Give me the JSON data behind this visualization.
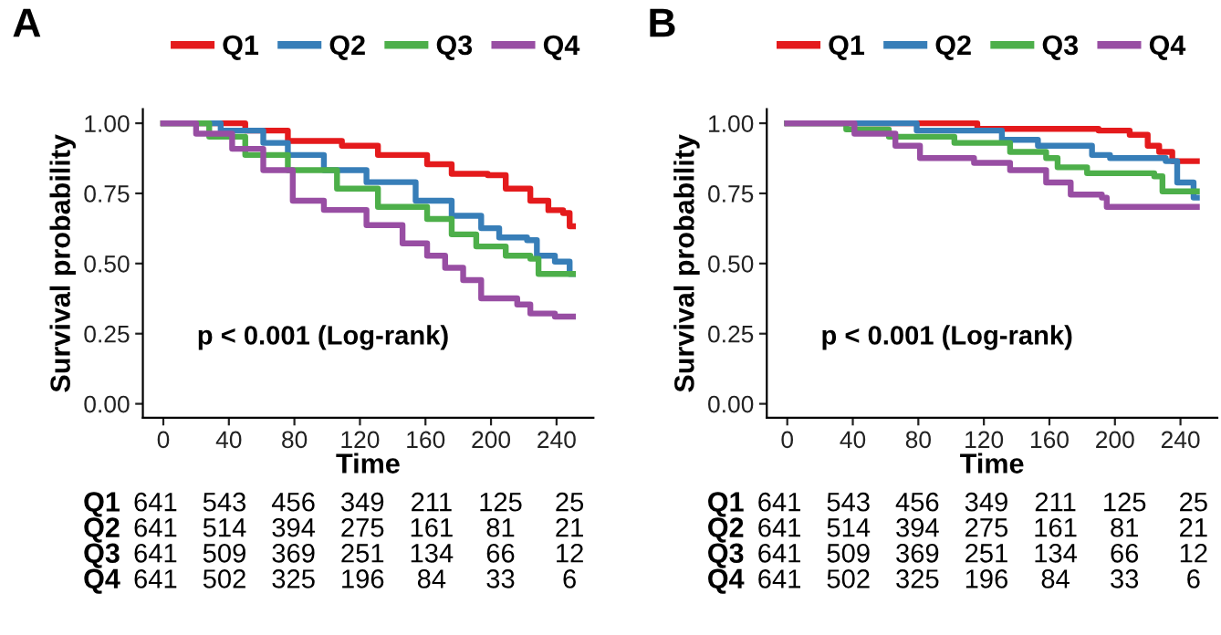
{
  "chart_data": [
    {
      "type": "step",
      "title": "A",
      "xlabel": "Time",
      "ylabel": "Survival probability",
      "legend": "top",
      "grid": false,
      "xlim": [
        -12.5,
        262.5
      ],
      "xticks": [
        0,
        40,
        80,
        120,
        160,
        200,
        240
      ],
      "ylim": [
        -0.05,
        1.05
      ],
      "yticks": [
        {
          "value": 0,
          "label": "0.00"
        },
        {
          "value": 0.25,
          "label": "0.25"
        },
        {
          "value": 0.5,
          "label": "0.50"
        },
        {
          "value": 0.75,
          "label": "0.75"
        },
        {
          "value": 1,
          "label": "1.00"
        }
      ],
      "series": [
        {
          "name": "Q1",
          "color": "#e41a1c",
          "x": [
            0,
            50,
            76,
            109,
            131,
            161,
            176,
            198,
            209,
            224,
            235,
            244,
            248,
            250
          ],
          "values": [
            1.0,
            0.974,
            0.937,
            0.92,
            0.887,
            0.854,
            0.82,
            0.815,
            0.767,
            0.724,
            0.69,
            0.68,
            0.633,
            0.633
          ]
        },
        {
          "name": "Q2",
          "color": "#377eb8",
          "x": [
            0,
            35,
            61,
            76,
            98,
            124,
            154,
            176,
            194,
            205,
            222,
            228,
            239,
            248,
            250
          ],
          "values": [
            1.0,
            0.974,
            0.93,
            0.887,
            0.833,
            0.79,
            0.724,
            0.67,
            0.626,
            0.593,
            0.583,
            0.528,
            0.507,
            0.463,
            0.463
          ]
        },
        {
          "name": "Q3",
          "color": "#4daf4a",
          "x": [
            0,
            28,
            50,
            76,
            106,
            131,
            161,
            176,
            191,
            209,
            224,
            229,
            250
          ],
          "values": [
            1.0,
            0.952,
            0.887,
            0.833,
            0.767,
            0.702,
            0.659,
            0.604,
            0.561,
            0.528,
            0.517,
            0.463,
            0.463
          ]
        },
        {
          "name": "Q4",
          "color": "#984ea3",
          "x": [
            0,
            20,
            42,
            61,
            79,
            98,
            124,
            146,
            161,
            172,
            183,
            194,
            216,
            224,
            239,
            250
          ],
          "values": [
            1.0,
            0.963,
            0.909,
            0.833,
            0.724,
            0.691,
            0.637,
            0.572,
            0.528,
            0.485,
            0.441,
            0.376,
            0.354,
            0.322,
            0.311,
            0.311
          ]
        }
      ],
      "annotations": [
        "p < 0.001 (Log-rank)",
        "Q1 641 543 456 349 211 125 25",
        "Q2 641 514 394 275 161 81 21",
        "Q3 641 509 369 251 134 66 12",
        "Q4 641 502 325 196 84 33 6"
      ]
    },
    {
      "type": "step",
      "title": "B",
      "xlabel": "Time",
      "ylabel": "Survival probability",
      "legend": "top",
      "grid": false,
      "xlim": [
        -12.5,
        262.5
      ],
      "xticks": [
        0,
        40,
        80,
        120,
        160,
        200,
        240
      ],
      "ylim": [
        -0.05,
        1.05
      ],
      "yticks": [
        {
          "value": 0,
          "label": "0.00"
        },
        {
          "value": 0.25,
          "label": "0.25"
        },
        {
          "value": 0.5,
          "label": "0.50"
        },
        {
          "value": 0.75,
          "label": "0.75"
        },
        {
          "value": 1,
          "label": "1.00"
        }
      ],
      "series": [
        {
          "name": "Q1",
          "color": "#e41a1c",
          "x": [
            0,
            116,
            190,
            209,
            220,
            227,
            235,
            250
          ],
          "values": [
            1.0,
            0.98,
            0.974,
            0.959,
            0.92,
            0.898,
            0.865,
            0.865
          ]
        },
        {
          "name": "Q2",
          "color": "#377eb8",
          "x": [
            0,
            79,
            131,
            153,
            186,
            197,
            231,
            238,
            248,
            250
          ],
          "values": [
            1.0,
            0.974,
            0.941,
            0.92,
            0.887,
            0.876,
            0.865,
            0.789,
            0.735,
            0.735
          ]
        },
        {
          "name": "Q3",
          "color": "#4daf4a",
          "x": [
            0,
            36,
            62,
            102,
            136,
            158,
            165,
            183,
            224,
            229,
            250
          ],
          "values": [
            1.0,
            0.978,
            0.952,
            0.93,
            0.898,
            0.876,
            0.843,
            0.822,
            0.811,
            0.757,
            0.757
          ]
        },
        {
          "name": "Q4",
          "color": "#984ea3",
          "x": [
            0,
            41,
            66,
            81,
            114,
            136,
            158,
            173,
            192,
            195,
            250
          ],
          "values": [
            1.0,
            0.963,
            0.92,
            0.876,
            0.859,
            0.833,
            0.789,
            0.746,
            0.735,
            0.702,
            0.702
          ]
        }
      ],
      "annotations": [
        "p < 0.001 (Log-rank)",
        "Q1 641 543 456 349 211 125 25",
        "Q2 641 514 394 275 161 81 21",
        "Q3 641 509 369 251 134 66 12",
        "Q4 641 502 325 196 84 33 6"
      ]
    }
  ]
}
